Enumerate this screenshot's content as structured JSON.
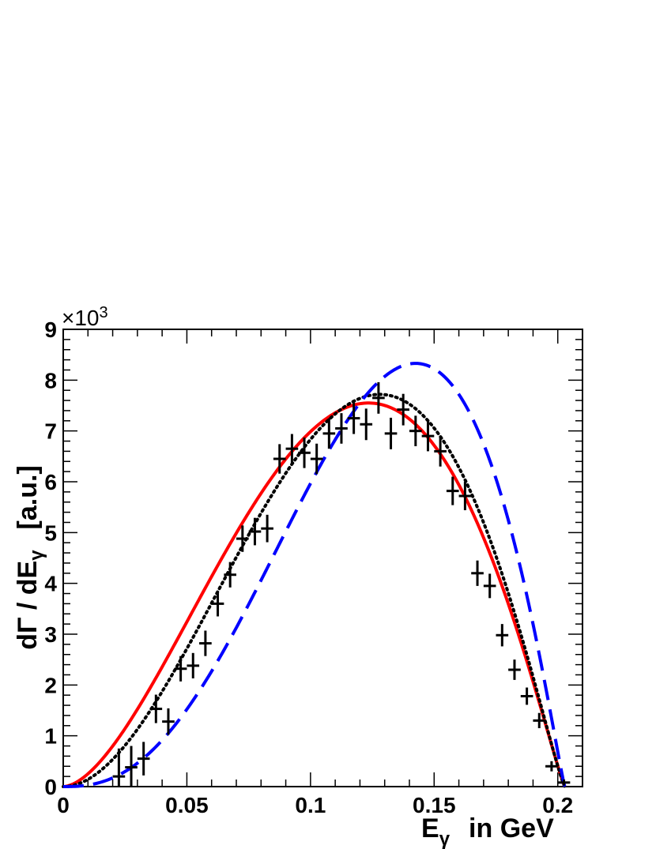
{
  "chart_data": {
    "type": "line",
    "title": "",
    "xlabel": {
      "main": "E",
      "sub": "γ",
      "suffix": "in GeV"
    },
    "ylabel": {
      "prefix": "dΓ / dE",
      "sub": "γ",
      "suffix": "[a.u.]"
    },
    "y_multiplier": {
      "symbol": "×",
      "base": "10",
      "exponent": "3"
    },
    "xlim": [
      0,
      0.21
    ],
    "ylim": [
      0,
      9000
    ],
    "xticks": [
      {
        "value": 0,
        "label": "0"
      },
      {
        "value": 0.05,
        "label": "0.05"
      },
      {
        "value": 0.1,
        "label": "0.1"
      },
      {
        "value": 0.15,
        "label": "0.15"
      },
      {
        "value": 0.2,
        "label": "0.2"
      }
    ],
    "yticks": [
      {
        "value": 0,
        "label": "0"
      },
      {
        "value": 1000,
        "label": "1"
      },
      {
        "value": 2000,
        "label": "2"
      },
      {
        "value": 3000,
        "label": "3"
      },
      {
        "value": 4000,
        "label": "4"
      },
      {
        "value": 5000,
        "label": "5"
      },
      {
        "value": 6000,
        "label": "6"
      },
      {
        "value": 7000,
        "label": "7"
      },
      {
        "value": 8000,
        "label": "8"
      },
      {
        "value": 9000,
        "label": "9"
      }
    ],
    "data_points": {
      "x_half_width": 0.0025,
      "points": [
        {
          "x": 0.0225,
          "y": 200,
          "err": 550
        },
        {
          "x": 0.0275,
          "y": 380,
          "err": 420
        },
        {
          "x": 0.0325,
          "y": 550,
          "err": 330
        },
        {
          "x": 0.0375,
          "y": 1530,
          "err": 280
        },
        {
          "x": 0.0425,
          "y": 1280,
          "err": 260
        },
        {
          "x": 0.0475,
          "y": 2320,
          "err": 250
        },
        {
          "x": 0.0525,
          "y": 2380,
          "err": 250
        },
        {
          "x": 0.0575,
          "y": 2820,
          "err": 250
        },
        {
          "x": 0.0625,
          "y": 3600,
          "err": 250
        },
        {
          "x": 0.0675,
          "y": 4170,
          "err": 250
        },
        {
          "x": 0.0725,
          "y": 4880,
          "err": 260
        },
        {
          "x": 0.0775,
          "y": 5020,
          "err": 270
        },
        {
          "x": 0.0825,
          "y": 5080,
          "err": 270
        },
        {
          "x": 0.0875,
          "y": 6450,
          "err": 290
        },
        {
          "x": 0.0925,
          "y": 6650,
          "err": 290
        },
        {
          "x": 0.0975,
          "y": 6570,
          "err": 300
        },
        {
          "x": 0.1025,
          "y": 6450,
          "err": 300
        },
        {
          "x": 0.1075,
          "y": 6950,
          "err": 300
        },
        {
          "x": 0.1125,
          "y": 7050,
          "err": 300
        },
        {
          "x": 0.1175,
          "y": 7250,
          "err": 310
        },
        {
          "x": 0.1225,
          "y": 7130,
          "err": 310
        },
        {
          "x": 0.1275,
          "y": 7650,
          "err": 310
        },
        {
          "x": 0.1325,
          "y": 6950,
          "err": 310
        },
        {
          "x": 0.1375,
          "y": 7420,
          "err": 310
        },
        {
          "x": 0.1425,
          "y": 7000,
          "err": 300
        },
        {
          "x": 0.1475,
          "y": 6900,
          "err": 300
        },
        {
          "x": 0.1525,
          "y": 6600,
          "err": 300
        },
        {
          "x": 0.1575,
          "y": 5820,
          "err": 280
        },
        {
          "x": 0.1625,
          "y": 5720,
          "err": 280
        },
        {
          "x": 0.1675,
          "y": 4200,
          "err": 250
        },
        {
          "x": 0.1725,
          "y": 3950,
          "err": 240
        },
        {
          "x": 0.1775,
          "y": 2980,
          "err": 220
        },
        {
          "x": 0.1825,
          "y": 2300,
          "err": 200
        },
        {
          "x": 0.1875,
          "y": 1780,
          "err": 170
        },
        {
          "x": 0.1925,
          "y": 1300,
          "err": 150
        },
        {
          "x": 0.1975,
          "y": 400,
          "err": 100
        },
        {
          "x": 0.2025,
          "y": 80,
          "err": 60
        }
      ]
    },
    "series": [
      {
        "style": "solid",
        "color": "#ff0000",
        "x_end": 0.2028,
        "peak_x": 0.1235,
        "peak_y": 7550,
        "shape": 1.75,
        "x_start": 0.0
      },
      {
        "style": "dotted",
        "color": "#000000",
        "x_end": 0.2028,
        "peak_x": 0.128,
        "peak_y": 7720,
        "shape": 2.0,
        "x_start": 0.0
      },
      {
        "style": "dashed",
        "color": "#0000ff",
        "x_end": 0.2028,
        "peak_x": 0.1425,
        "peak_y": 8330,
        "shape": 2.6,
        "x_start": 0.0
      }
    ]
  }
}
